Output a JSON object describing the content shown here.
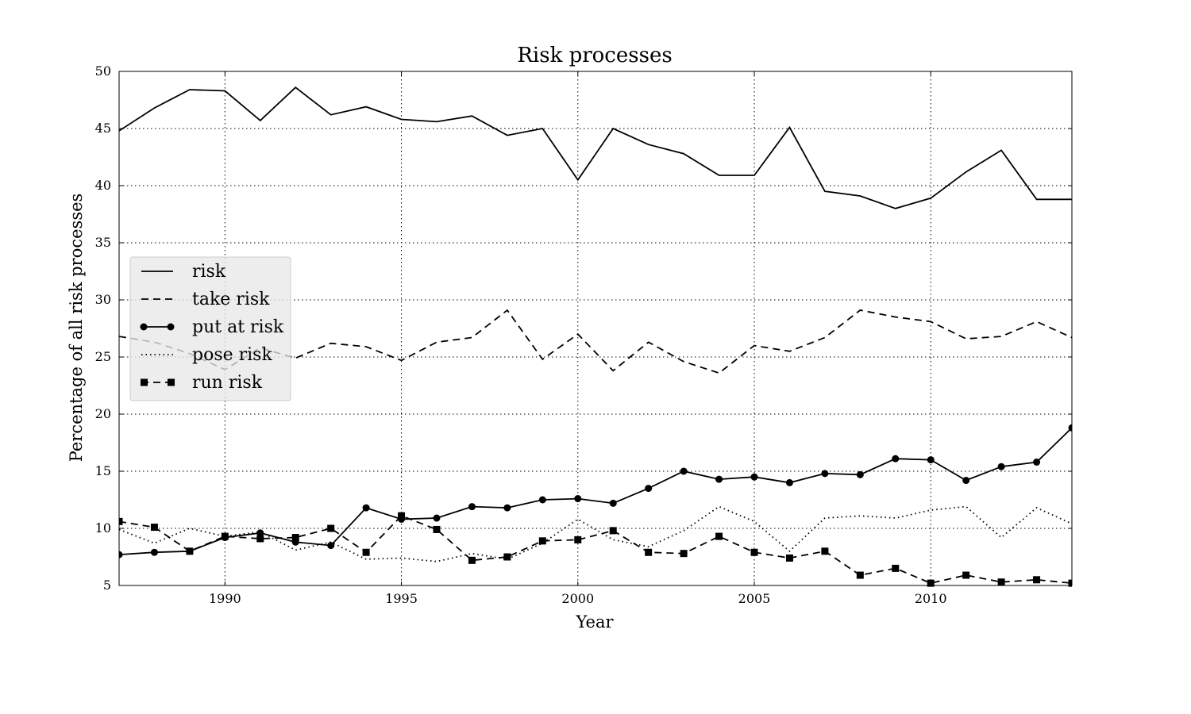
{
  "chart_data": {
    "type": "line",
    "title": "Risk processes",
    "xlabel": "Year",
    "ylabel": "Percentage of all risk processes",
    "xlim": [
      1987,
      2014
    ],
    "ylim": [
      5,
      50
    ],
    "xticks": [
      1990,
      1995,
      2000,
      2005,
      2010
    ],
    "yticks": [
      5,
      10,
      15,
      20,
      25,
      30,
      35,
      40,
      45,
      50
    ],
    "grid": true,
    "legend_position": "center-left",
    "x": [
      1987,
      1988,
      1989,
      1990,
      1991,
      1992,
      1993,
      1994,
      1995,
      1996,
      1997,
      1998,
      1999,
      2000,
      2001,
      2002,
      2003,
      2004,
      2005,
      2006,
      2007,
      2008,
      2009,
      2010,
      2011,
      2012,
      2013,
      2014
    ],
    "series": [
      {
        "name": "risk",
        "style": "solid",
        "marker": "none",
        "values": [
          44.8,
          46.8,
          48.4,
          48.3,
          45.7,
          48.6,
          46.2,
          46.9,
          45.8,
          45.6,
          46.1,
          44.4,
          45.0,
          40.5,
          45.0,
          43.6,
          42.8,
          40.9,
          40.9,
          45.1,
          39.5,
          39.1,
          38.0,
          38.9,
          41.2,
          43.1,
          38.8,
          38.8
        ]
      },
      {
        "name": "take risk",
        "style": "dashed",
        "marker": "none",
        "values": [
          26.8,
          26.3,
          25.3,
          23.9,
          25.8,
          24.9,
          26.2,
          25.9,
          24.7,
          26.3,
          26.7,
          29.1,
          24.8,
          27.0,
          23.8,
          26.3,
          24.6,
          23.6,
          26.0,
          25.5,
          26.7,
          29.1,
          28.5,
          28.1,
          26.6,
          26.8,
          28.1,
          26.7
        ]
      },
      {
        "name": "put at risk",
        "style": "solid",
        "marker": "circle",
        "values": [
          7.7,
          7.9,
          8.0,
          9.2,
          9.6,
          8.8,
          8.5,
          11.8,
          10.8,
          10.9,
          11.9,
          11.8,
          12.5,
          12.6,
          12.2,
          13.5,
          15.0,
          14.3,
          14.5,
          14.0,
          14.8,
          14.7,
          16.1,
          16.0,
          14.2,
          15.4,
          15.8,
          18.8
        ]
      },
      {
        "name": "pose risk",
        "style": "dotted",
        "marker": "none",
        "values": [
          9.9,
          8.7,
          10.0,
          9.3,
          9.7,
          8.1,
          8.8,
          7.3,
          7.4,
          7.1,
          7.8,
          7.3,
          8.7,
          10.8,
          9.0,
          8.4,
          9.8,
          11.9,
          10.6,
          8.0,
          10.9,
          11.1,
          10.9,
          11.6,
          11.9,
          9.2,
          11.8,
          10.4
        ]
      },
      {
        "name": "run risk",
        "style": "dashed",
        "marker": "square",
        "values": [
          10.6,
          10.1,
          8.0,
          9.3,
          9.1,
          9.2,
          10.0,
          7.9,
          11.1,
          9.9,
          7.2,
          7.5,
          8.9,
          9.0,
          9.8,
          7.9,
          7.8,
          9.3,
          7.9,
          7.4,
          8.0,
          5.9,
          6.5,
          5.2,
          5.9,
          5.3,
          5.5,
          5.2
        ]
      }
    ]
  }
}
